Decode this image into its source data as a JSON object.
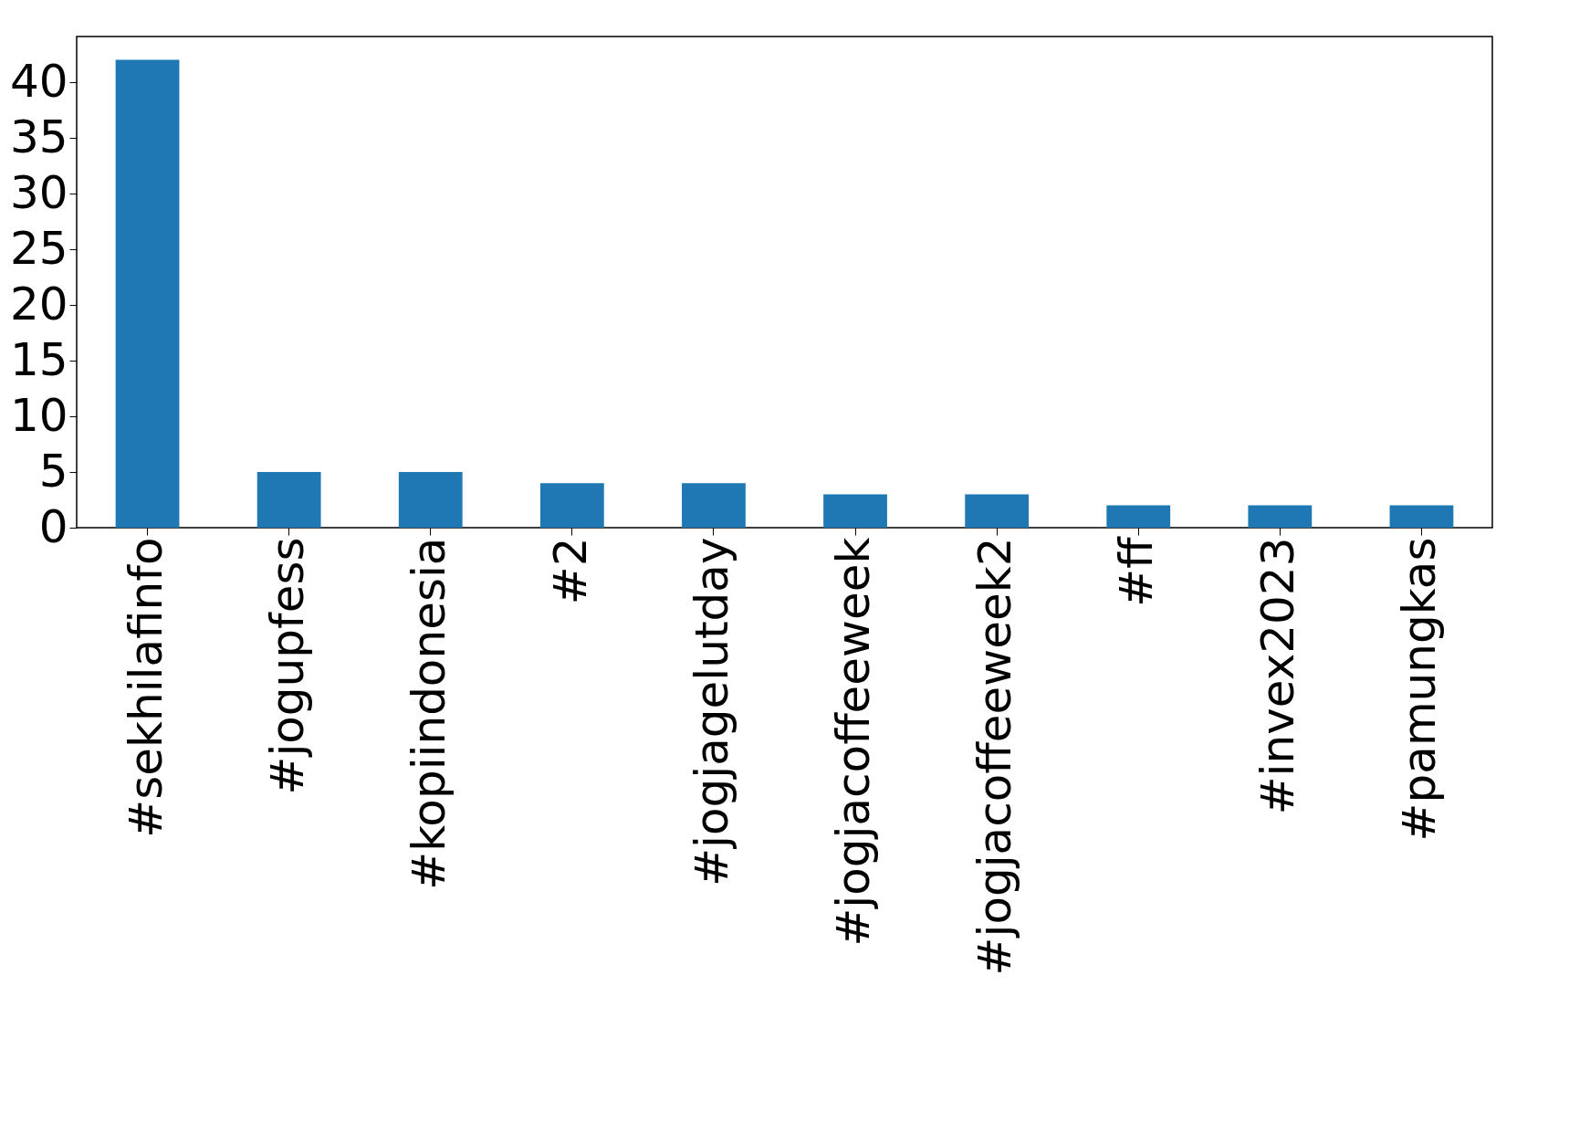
{
  "chart_data": {
    "type": "bar",
    "categories": [
      "#sekhilafinfo",
      "#jogupfess",
      "#kopiindonesia",
      "#2",
      "#jogjagelutday",
      "#jogjacoffeeweek",
      "#jogjacoffeeweek2",
      "#ff",
      "#invex2023",
      "#pamungkas"
    ],
    "values": [
      42,
      5,
      5,
      4,
      4,
      3,
      3,
      2,
      2,
      2
    ],
    "color": "#1f77b4",
    "ylim": [
      0,
      44.1
    ],
    "yticks": [
      0,
      5,
      10,
      15,
      20,
      25,
      30,
      35,
      40
    ],
    "grid": false
  }
}
